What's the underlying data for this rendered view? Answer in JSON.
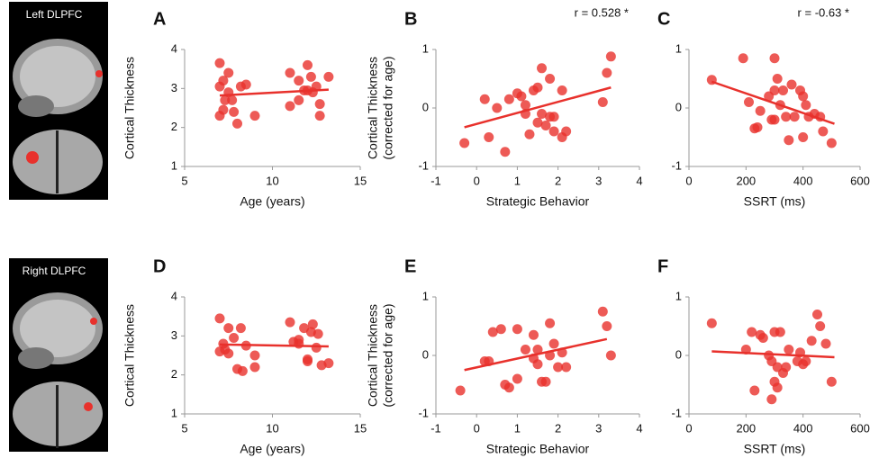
{
  "row_labels": [
    "Left DLPFC",
    "Right DLPFC"
  ],
  "chart_data": [
    {
      "type": "scatter",
      "title": "A",
      "x_label": "Age (years)",
      "y_label": [
        "Cortical Thickness"
      ],
      "color": "#e8312c",
      "xlim": [
        5,
        15
      ],
      "xticks": [
        5,
        10,
        15
      ],
      "ylim": [
        1,
        4
      ],
      "yticks": [
        1,
        2,
        3,
        4
      ],
      "x": [
        7,
        7.2,
        7.5,
        7,
        7.5,
        7.3,
        7,
        7.2,
        7.8,
        8,
        8.2,
        8.5,
        7.7,
        9,
        11,
        11.5,
        12,
        12.2,
        12,
        11.8,
        12.5,
        12.3,
        12.7,
        13.2,
        11,
        11.5,
        12.7
      ],
      "values": [
        3.65,
        3.2,
        3.4,
        3.05,
        2.9,
        2.7,
        2.3,
        2.45,
        2.4,
        2.1,
        3.05,
        3.1,
        2.7,
        2.3,
        3.4,
        3.2,
        3.6,
        3.3,
        2.95,
        2.95,
        3.05,
        2.9,
        2.3,
        3.3,
        2.55,
        2.7,
        2.6
      ],
      "trend": {
        "x": [
          7,
          13.2
        ],
        "y": [
          2.82,
          2.97
        ]
      }
    },
    {
      "type": "scatter",
      "title": "B",
      "annotation": "r = 0.528 *",
      "x_label": "Strategic Behavior",
      "y_label": [
        "Cortical Thickness",
        "(corrected for age)"
      ],
      "color": "#e8312c",
      "xlim": [
        -1,
        4
      ],
      "xticks": [
        -1,
        0,
        1,
        2,
        3,
        4
      ],
      "ylim": [
        -1,
        1
      ],
      "yticks": [
        -1,
        0,
        1
      ],
      "x": [
        -0.3,
        0.2,
        0.3,
        0.5,
        0.7,
        0.8,
        1,
        1.1,
        1.2,
        1.4,
        1.5,
        1.6,
        1.3,
        1.5,
        1.6,
        1.7,
        1.8,
        1.9,
        1.8,
        1.9,
        2.1,
        2.2,
        2.1,
        3.1,
        3.2,
        3.3,
        1.2
      ],
      "values": [
        -0.6,
        0.15,
        -0.5,
        0,
        -0.75,
        0.15,
        0.25,
        0.2,
        0.05,
        0.3,
        0.35,
        0.68,
        -0.45,
        -0.25,
        -0.1,
        -0.3,
        -0.15,
        -0.15,
        0.5,
        -0.4,
        -0.5,
        -0.4,
        0.3,
        0.1,
        0.6,
        0.88,
        -0.1
      ],
      "trend": {
        "x": [
          -0.3,
          3.3
        ],
        "y": [
          -0.33,
          0.35
        ]
      }
    },
    {
      "type": "scatter",
      "title": "C",
      "annotation": "r = -0.63 *",
      "x_label": "SSRT (ms)",
      "color": "#e8312c",
      "xlim": [
        0,
        600
      ],
      "xticks": [
        0,
        200,
        400,
        600
      ],
      "ylim": [
        -1,
        1
      ],
      "yticks": [
        -1,
        0,
        1
      ],
      "x": [
        80,
        190,
        210,
        230,
        240,
        250,
        280,
        290,
        300,
        300,
        310,
        320,
        330,
        340,
        350,
        360,
        370,
        390,
        400,
        400,
        410,
        420,
        440,
        460,
        470,
        500,
        300
      ],
      "values": [
        0.48,
        0.85,
        0.1,
        -0.35,
        -0.33,
        -0.05,
        0.2,
        -0.2,
        0.3,
        0.85,
        0.5,
        0.05,
        0.3,
        -0.15,
        -0.55,
        0.4,
        -0.15,
        0.3,
        0.2,
        -0.5,
        0.05,
        -0.15,
        -0.1,
        -0.15,
        -0.4,
        -0.6,
        -0.2
      ],
      "trend": {
        "x": [
          80,
          510
        ],
        "y": [
          0.45,
          -0.27
        ]
      }
    },
    {
      "type": "scatter",
      "title": "D",
      "x_label": "Age (years)",
      "y_label": [
        "Cortical Thickness"
      ],
      "color": "#e8312c",
      "xlim": [
        5,
        15
      ],
      "xticks": [
        5,
        10,
        15
      ],
      "ylim": [
        1,
        4
      ],
      "yticks": [
        1,
        2,
        3,
        4
      ],
      "x": [
        7,
        7.2,
        7,
        7.3,
        7.5,
        7.5,
        7.8,
        8,
        8.2,
        8.3,
        8.5,
        9,
        9,
        11,
        11.2,
        11.5,
        11.8,
        12,
        12.2,
        12.3,
        12.5,
        12.6,
        12.8,
        13.2,
        11.5,
        12
      ],
      "values": [
        3.45,
        2.8,
        2.6,
        2.65,
        3.2,
        2.55,
        2.95,
        2.15,
        3.2,
        2.1,
        2.75,
        2.5,
        2.2,
        3.35,
        2.85,
        2.8,
        3.2,
        2.35,
        3.1,
        3.3,
        2.7,
        3.05,
        2.25,
        2.3,
        2.9,
        2.4
      ],
      "trend": {
        "x": [
          7,
          13.2
        ],
        "y": [
          2.78,
          2.73
        ]
      }
    },
    {
      "type": "scatter",
      "title": "E",
      "x_label": "Strategic Behavior",
      "y_label": [
        "Cortical Thickness",
        "(corrected for age)"
      ],
      "color": "#e8312c",
      "xlim": [
        -1,
        4
      ],
      "xticks": [
        -1,
        0,
        1,
        2,
        3,
        4
      ],
      "ylim": [
        -1,
        1
      ],
      "yticks": [
        -1,
        0,
        1
      ],
      "x": [
        -0.4,
        0.2,
        0.3,
        0.4,
        0.6,
        0.7,
        0.8,
        1,
        1,
        1.2,
        1.4,
        1.4,
        1.5,
        1.6,
        1.7,
        1.8,
        1.9,
        1.8,
        2,
        2.1,
        2.2,
        3.1,
        3.2,
        3.3,
        1.5
      ],
      "values": [
        -0.6,
        -0.1,
        -0.1,
        0.4,
        0.45,
        -0.5,
        -0.55,
        0.45,
        -0.4,
        0.1,
        0.35,
        -0.05,
        0.1,
        -0.45,
        -0.45,
        0.55,
        0.2,
        0,
        -0.2,
        0.05,
        -0.2,
        0.75,
        0.5,
        0,
        -0.15
      ],
      "trend": {
        "x": [
          -0.3,
          3.2
        ],
        "y": [
          -0.25,
          0.28
        ]
      }
    },
    {
      "type": "scatter",
      "title": "F",
      "x_label": "SSRT (ms)",
      "color": "#e8312c",
      "xlim": [
        0,
        600
      ],
      "xticks": [
        0,
        200,
        400,
        600
      ],
      "ylim": [
        -1,
        1
      ],
      "yticks": [
        -1,
        0,
        1
      ],
      "x": [
        80,
        200,
        220,
        230,
        250,
        260,
        280,
        290,
        300,
        300,
        310,
        320,
        330,
        340,
        350,
        380,
        390,
        400,
        410,
        430,
        450,
        460,
        480,
        500,
        290,
        310
      ],
      "values": [
        0.55,
        0.1,
        0.4,
        -0.6,
        0.35,
        0.3,
        0,
        -0.1,
        0.4,
        -0.45,
        -0.2,
        0.4,
        -0.3,
        -0.2,
        0.1,
        -0.1,
        0.05,
        -0.15,
        -0.1,
        0.25,
        0.7,
        0.5,
        0.2,
        -0.45,
        -0.75,
        -0.55
      ],
      "trend": {
        "x": [
          80,
          510
        ],
        "y": [
          0.07,
          -0.03
        ]
      }
    }
  ]
}
